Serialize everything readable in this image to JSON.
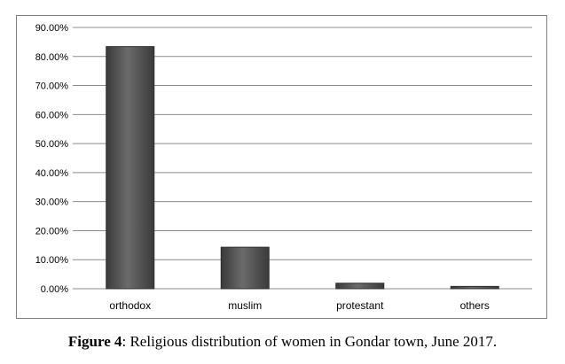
{
  "chart_data": {
    "type": "bar",
    "categories": [
      "orthodox",
      "muslim",
      "protestant",
      "others"
    ],
    "values": [
      0.834,
      0.143,
      0.019,
      0.008
    ],
    "ylim": [
      0,
      0.9
    ],
    "yticks": [
      "0.00%",
      "10.00%",
      "20.00%",
      "30.00%",
      "40.00%",
      "50.00%",
      "60.00%",
      "70.00%",
      "80.00%",
      "90.00%"
    ],
    "ytick_values": [
      0,
      0.1,
      0.2,
      0.3,
      0.4,
      0.5,
      0.6,
      0.7,
      0.8,
      0.9
    ],
    "grid": true,
    "bar_color": "#505050",
    "grid_color": "#8c8c8c"
  },
  "caption": {
    "label": "Figure 4",
    "text": ": Religious distribution of women in Gondar town, June 2017."
  }
}
